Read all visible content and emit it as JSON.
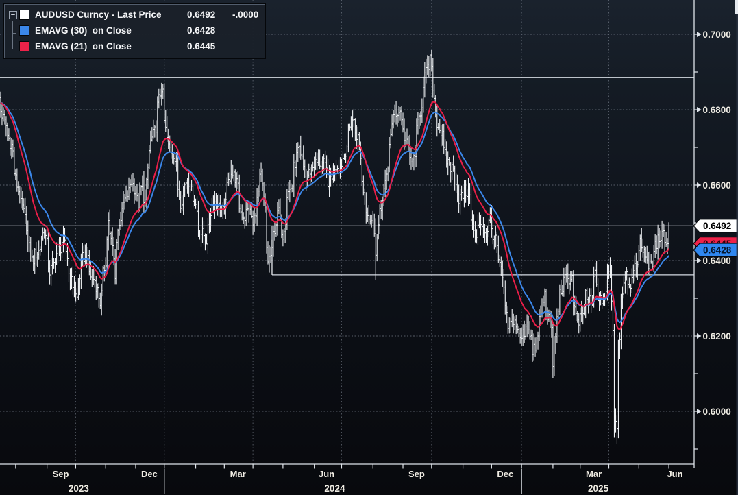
{
  "window": {
    "app": "Bloomberg Terminal chart",
    "instrument": "AUDUSD Curncy",
    "edge_artifact": true
  },
  "legend": {
    "collapse_glyph": "−",
    "items": [
      {
        "swatch": "#ffffff",
        "label": "AUDUSD Curncy - Last Price",
        "value": "0.6492",
        "change": "-.0000"
      },
      {
        "swatch": "#3b87ea",
        "label": "EMAVG (30)  on Close",
        "value": "0.6428",
        "change": ""
      },
      {
        "swatch": "#ee2249",
        "label": "EMAVG (21)  on Close",
        "value": "0.6445",
        "change": ""
      }
    ]
  },
  "colors": {
    "background_top": "#1a222d",
    "background_bottom": "#08090d",
    "bars": "#eef1f4",
    "ema30": "#3b87ea",
    "ema21": "#e91e48",
    "grid": "#8b93a0",
    "reference_line": "#d5dae2",
    "axis_text": "#efece3",
    "axis_spine": "#dfe4ea",
    "tag_last_bg": "#ffffff",
    "tag_ema30_bg": "#2f87f0",
    "tag_ema21_bg": "#ee2249"
  },
  "chart_data": {
    "type": "ohlc-bars-with-ema-overlays",
    "title": "AUDUSD Curncy - Last Price",
    "last_price": 0.6492,
    "change": "-.0000",
    "x_range": [
      "2023-07-14",
      "2025-06-02"
    ],
    "frequency": "daily",
    "y_axis": {
      "ylim": [
        0.586,
        0.709
      ],
      "ticks_major": [
        0.7,
        0.68,
        0.66,
        0.64,
        0.62,
        0.6
      ],
      "tick_labels": [
        "0.7000",
        "0.6800",
        "0.6600",
        "0.6400",
        "0.6200",
        "0.6000"
      ],
      "ticks_minor": [
        0.69,
        0.67,
        0.65,
        0.63,
        0.61,
        0.59
      ]
    },
    "x_axis": {
      "quarter_gridlines": [
        "2023-10-01",
        "2024-01-01",
        "2024-04-01",
        "2024-07-01",
        "2024-10-01",
        "2025-01-01",
        "2025-04-01"
      ],
      "month_labels": [
        {
          "label": "Sep",
          "anchor": "2023-09-15"
        },
        {
          "label": "Dec",
          "anchor": "2023-12-15"
        },
        {
          "label": "Mar",
          "anchor": "2024-03-15"
        },
        {
          "label": "Jun",
          "anchor": "2024-06-14"
        },
        {
          "label": "Sep",
          "anchor": "2024-09-16"
        },
        {
          "label": "Dec",
          "anchor": "2024-12-16"
        },
        {
          "label": "Mar",
          "anchor": "2025-03-17"
        },
        {
          "label": "Jun",
          "anchor": "2025-06-13"
        }
      ],
      "year_labels": [
        "2023",
        "2024",
        "2025"
      ],
      "year_separators": [
        "2024-01-01",
        "2025-01-01"
      ]
    },
    "series": [
      {
        "name": "AUDUSD Curncy - Last Price",
        "style": "ohlc-bar",
        "color": "#eef1f4",
        "anchors": [
          [
            "2023-07-14",
            0.683
          ],
          [
            "2023-07-19",
            0.6775
          ],
          [
            "2023-07-27",
            0.6705
          ],
          [
            "2023-08-01",
            0.6615
          ],
          [
            "2023-08-04",
            0.657
          ],
          [
            "2023-08-08",
            0.654
          ],
          [
            "2023-08-11",
            0.6495
          ],
          [
            "2023-08-17",
            0.64
          ],
          [
            "2023-08-24",
            0.6425
          ],
          [
            "2023-08-30",
            0.648
          ],
          [
            "2023-09-05",
            0.637
          ],
          [
            "2023-09-13",
            0.6425
          ],
          [
            "2023-09-19",
            0.6455
          ],
          [
            "2023-09-26",
            0.635
          ],
          [
            "2023-10-03",
            0.63
          ],
          [
            "2023-10-06",
            0.639
          ],
          [
            "2023-10-11",
            0.6415
          ],
          [
            "2023-10-17",
            0.636
          ],
          [
            "2023-10-23",
            0.6335
          ],
          [
            "2023-10-26",
            0.629
          ],
          [
            "2023-11-01",
            0.64
          ],
          [
            "2023-11-03",
            0.651
          ],
          [
            "2023-11-08",
            0.6435
          ],
          [
            "2023-11-10",
            0.6365
          ],
          [
            "2023-11-15",
            0.6505
          ],
          [
            "2023-11-21",
            0.656
          ],
          [
            "2023-11-28",
            0.661
          ],
          [
            "2023-12-05",
            0.655
          ],
          [
            "2023-12-08",
            0.661
          ],
          [
            "2023-12-12",
            0.6555
          ],
          [
            "2023-12-15",
            0.669
          ],
          [
            "2023-12-21",
            0.674
          ],
          [
            "2023-12-28",
            0.686
          ],
          [
            "2024-01-04",
            0.67
          ],
          [
            "2024-01-10",
            0.6685
          ],
          [
            "2024-01-17",
            0.6555
          ],
          [
            "2024-01-24",
            0.662
          ],
          [
            "2024-01-31",
            0.6565
          ],
          [
            "2024-02-05",
            0.648
          ],
          [
            "2024-02-13",
            0.6455
          ],
          [
            "2024-02-16",
            0.653
          ],
          [
            "2024-02-22",
            0.656
          ],
          [
            "2024-03-01",
            0.6525
          ],
          [
            "2024-03-08",
            0.664
          ],
          [
            "2024-03-13",
            0.662
          ],
          [
            "2024-03-19",
            0.653
          ],
          [
            "2024-03-22",
            0.6515
          ],
          [
            "2024-03-27",
            0.6535
          ],
          [
            "2024-04-01",
            0.649
          ],
          [
            "2024-04-05",
            0.658
          ],
          [
            "2024-04-09",
            0.6625
          ],
          [
            "2024-04-16",
            0.64
          ],
          [
            "2024-04-19",
            0.642
          ],
          [
            "2024-04-26",
            0.6535
          ],
          [
            "2024-05-01",
            0.647
          ],
          [
            "2024-05-06",
            0.6575
          ],
          [
            "2024-05-10",
            0.66
          ],
          [
            "2024-05-16",
            0.669
          ],
          [
            "2024-05-21",
            0.6665
          ],
          [
            "2024-05-24",
            0.661
          ],
          [
            "2024-05-31",
            0.665
          ],
          [
            "2024-06-06",
            0.666
          ],
          [
            "2024-06-12",
            0.6655
          ],
          [
            "2024-06-17",
            0.661
          ],
          [
            "2024-06-24",
            0.665
          ],
          [
            "2024-07-01",
            0.666
          ],
          [
            "2024-07-08",
            0.674
          ],
          [
            "2024-07-11",
            0.6775
          ],
          [
            "2024-07-17",
            0.6725
          ],
          [
            "2024-07-25",
            0.654
          ],
          [
            "2024-08-01",
            0.65
          ],
          [
            "2024-08-05",
            0.643
          ],
          [
            "2024-08-08",
            0.652
          ],
          [
            "2024-08-15",
            0.6615
          ],
          [
            "2024-08-20",
            0.674
          ],
          [
            "2024-08-23",
            0.679
          ],
          [
            "2024-08-29",
            0.6795
          ],
          [
            "2024-09-04",
            0.6715
          ],
          [
            "2024-09-11",
            0.6655
          ],
          [
            "2024-09-17",
            0.676
          ],
          [
            "2024-09-24",
            0.689
          ],
          [
            "2024-09-30",
            0.6935
          ],
          [
            "2024-10-04",
            0.6795
          ],
          [
            "2024-10-10",
            0.674
          ],
          [
            "2024-10-16",
            0.6665
          ],
          [
            "2024-10-23",
            0.664
          ],
          [
            "2024-10-29",
            0.6565
          ],
          [
            "2024-11-05",
            0.658
          ],
          [
            "2024-11-08",
            0.6585
          ],
          [
            "2024-11-14",
            0.6455
          ],
          [
            "2024-11-20",
            0.65
          ],
          [
            "2024-11-26",
            0.647
          ],
          [
            "2024-11-29",
            0.6515
          ],
          [
            "2024-12-05",
            0.645
          ],
          [
            "2024-12-11",
            0.637
          ],
          [
            "2024-12-18",
            0.6225
          ],
          [
            "2024-12-24",
            0.6245
          ],
          [
            "2024-12-31",
            0.619
          ],
          [
            "2025-01-07",
            0.624
          ],
          [
            "2025-01-13",
            0.615
          ],
          [
            "2025-01-17",
            0.6195
          ],
          [
            "2025-01-24",
            0.631
          ],
          [
            "2025-01-31",
            0.622
          ],
          [
            "2025-02-03",
            0.6125
          ],
          [
            "2025-02-07",
            0.628
          ],
          [
            "2025-02-14",
            0.635
          ],
          [
            "2025-02-21",
            0.6355
          ],
          [
            "2025-02-27",
            0.623
          ],
          [
            "2025-03-05",
            0.6255
          ],
          [
            "2025-03-07",
            0.631
          ],
          [
            "2025-03-13",
            0.6285
          ],
          [
            "2025-03-18",
            0.6365
          ],
          [
            "2025-03-21",
            0.628
          ],
          [
            "2025-03-27",
            0.6305
          ],
          [
            "2025-04-02",
            0.638
          ],
          [
            "2025-04-04",
            0.6225
          ],
          [
            "2025-04-07",
            0.5985
          ],
          [
            "2025-04-09",
            0.5965
          ],
          [
            "2025-04-10",
            0.6165
          ],
          [
            "2025-04-14",
            0.6295
          ],
          [
            "2025-04-17",
            0.637
          ],
          [
            "2025-04-23",
            0.634
          ],
          [
            "2025-04-29",
            0.6385
          ],
          [
            "2025-05-02",
            0.6445
          ],
          [
            "2025-05-07",
            0.643
          ],
          [
            "2025-05-12",
            0.6375
          ],
          [
            "2025-05-15",
            0.64
          ],
          [
            "2025-05-20",
            0.6445
          ],
          [
            "2025-05-26",
            0.649
          ],
          [
            "2025-05-29",
            0.644
          ],
          [
            "2025-06-02",
            0.6492
          ]
        ],
        "wick_overrides": {
          "2023-10-26": {
            "low": 0.6271
          },
          "2023-12-28": {
            "high": 0.6871
          },
          "2024-02-13": {
            "low": 0.6443
          },
          "2024-03-08": {
            "high": 0.6667
          },
          "2024-04-19": {
            "low": 0.6362
          },
          "2024-05-16": {
            "high": 0.6714
          },
          "2024-07-11": {
            "high": 0.6798
          },
          "2024-08-05": {
            "low": 0.6349,
            "high": 0.6512
          },
          "2024-09-30": {
            "high": 0.6942
          },
          "2025-01-13": {
            "low": 0.6131
          },
          "2025-02-03": {
            "low": 0.6088
          },
          "2025-04-07": {
            "low": 0.593
          },
          "2025-04-09": {
            "low": 0.5914
          }
        }
      },
      {
        "name": "EMAVG (30) on Close",
        "style": "line",
        "period": 30,
        "color": "#3b87ea",
        "last": 0.6428
      },
      {
        "name": "EMAVG (21) on Close",
        "style": "line",
        "period": 21,
        "color": "#e91e48",
        "last": 0.6445
      }
    ],
    "reference_lines": [
      {
        "name": "resistance-line",
        "price": 0.6885,
        "extent": "full"
      },
      {
        "name": "last-price-line",
        "price": 0.6492,
        "extent": "full"
      },
      {
        "name": "support-box-line",
        "price": 0.6362,
        "from_date": "2024-04-19",
        "riser_to_price": 0.6492
      }
    ],
    "price_tags": [
      {
        "name": "ema21-tag",
        "price": 0.6445,
        "text": "0.6445",
        "bg": "#ee2249",
        "fg": "#2a040d"
      },
      {
        "name": "ema30-tag",
        "price": 0.6428,
        "text": "0.6428",
        "bg": "#2f87f0",
        "fg": "#04172e"
      },
      {
        "name": "last-price-tag",
        "price": 0.6492,
        "text": "0.6492",
        "bg": "#ffffff",
        "fg": "#000000"
      }
    ]
  }
}
